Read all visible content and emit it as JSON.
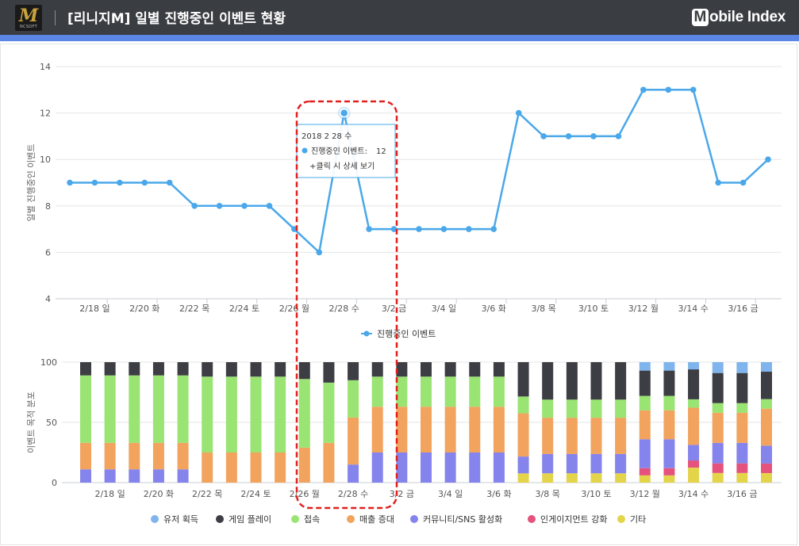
{
  "header": {
    "game_logo_glyph": "M",
    "game_logo_sub": "NCSOFT",
    "title": "[리니지M] 일별 진행중인 이벤트 현황",
    "brand_badge": "M",
    "brand_text": "obile Index"
  },
  "colors": {
    "header_bg": "#3a3d42",
    "accent_stripe": "#5b86e5",
    "line": "#4aa8ea",
    "highlight_box": "#e0201e"
  },
  "chart_data": [
    {
      "type": "line",
      "x": [
        "2018-02-17",
        "2018-02-18",
        "2018-02-19",
        "2018-02-20",
        "2018-02-21",
        "2018-02-22",
        "2018-02-23",
        "2018-02-24",
        "2018-02-25",
        "2018-02-26",
        "2018-02-27",
        "2018-02-28",
        "2018-03-01",
        "2018-03-02",
        "2018-03-03",
        "2018-03-04",
        "2018-03-05",
        "2018-03-06",
        "2018-03-07",
        "2018-03-08",
        "2018-03-09",
        "2018-03-10",
        "2018-03-11",
        "2018-03-12",
        "2018-03-13",
        "2018-03-14",
        "2018-03-15",
        "2018-03-16",
        "2018-03-17"
      ],
      "series": [
        {
          "name": "진행중인 이벤트",
          "values": [
            9,
            9,
            9,
            9,
            9,
            8,
            8,
            8,
            8,
            7,
            6,
            12,
            7,
            7,
            7,
            7,
            7,
            7,
            12,
            11,
            11,
            11,
            11,
            13,
            13,
            13,
            9,
            9,
            10
          ]
        }
      ],
      "tick_labels": [
        "2/18 일",
        "2/20 화",
        "2/22 목",
        "2/24 토",
        "2/26 월",
        "2/28 수",
        "3/2 금",
        "3/4 일",
        "3/6 화",
        "3/8 목",
        "3/10 토",
        "3/12 월",
        "3/14 수",
        "3/16 금"
      ],
      "ylabel": "일별 진행중인 이벤트",
      "ylim": [
        4,
        14
      ],
      "yticks": [
        4,
        6,
        8,
        10,
        12,
        14
      ],
      "grid": true,
      "legend": "bottom-center",
      "tooltip": {
        "index": 11,
        "date": "2018 2 28 수",
        "series_label": "진행중인 이벤트:",
        "value": "12",
        "hint": "+클릭 시 상세 보기"
      }
    },
    {
      "type": "bar",
      "stacked": true,
      "x": [
        "2018-02-17",
        "2018-02-18",
        "2018-02-19",
        "2018-02-20",
        "2018-02-21",
        "2018-02-22",
        "2018-02-23",
        "2018-02-24",
        "2018-02-25",
        "2018-02-26",
        "2018-02-27",
        "2018-02-28",
        "2018-03-01",
        "2018-03-02",
        "2018-03-03",
        "2018-03-04",
        "2018-03-05",
        "2018-03-06",
        "2018-03-07",
        "2018-03-08",
        "2018-03-09",
        "2018-03-10",
        "2018-03-11",
        "2018-03-12",
        "2018-03-13",
        "2018-03-14",
        "2018-03-15",
        "2018-03-16",
        "2018-03-17"
      ],
      "tick_labels": [
        "2/18 일",
        "2/20 화",
        "2/22 목",
        "2/24 토",
        "2/26 월",
        "2/28 수",
        "3/2 금",
        "3/4 일",
        "3/6 화",
        "3/8 목",
        "3/10 토",
        "3/12 월",
        "3/14 수",
        "3/16 금"
      ],
      "ylabel": "이벤트 목적 분포",
      "ylim": [
        0,
        100
      ],
      "yticks": [
        0,
        50,
        100
      ],
      "legend": "bottom-center",
      "series": [
        {
          "name": "기타",
          "color": "#e3d44a",
          "values": [
            0,
            0,
            0,
            0,
            0,
            0,
            0,
            0,
            0,
            0,
            0,
            0,
            0,
            0,
            0,
            0,
            0,
            0,
            7.7,
            7.7,
            7.7,
            7.7,
            7.7,
            6,
            6,
            12.5,
            8,
            8,
            8
          ]
        },
        {
          "name": "인게이지먼트 강화",
          "color": "#e5527d",
          "values": [
            0,
            0,
            0,
            0,
            0,
            0,
            0,
            0,
            0,
            0,
            0,
            0,
            0,
            0,
            0,
            0,
            0,
            0,
            0,
            0,
            0,
            0,
            0,
            6,
            6,
            6,
            8,
            8,
            8
          ]
        },
        {
          "name": "커뮤니티/SNS 활성화",
          "color": "#8584ec",
          "values": [
            11,
            11,
            11,
            11,
            11,
            0,
            0,
            0,
            0,
            0,
            0,
            15,
            25,
            25,
            25,
            25,
            25,
            25,
            14,
            16,
            16,
            16,
            16,
            24,
            24,
            13,
            17,
            17,
            15
          ]
        },
        {
          "name": "매출 증대",
          "color": "#f2a35e",
          "values": [
            22,
            22,
            22,
            22,
            22,
            25,
            25,
            25,
            25,
            29,
            33,
            39,
            38,
            38,
            38,
            38,
            38,
            38,
            36,
            30,
            30,
            30,
            30,
            24,
            24,
            31,
            25,
            25,
            31
          ]
        },
        {
          "name": "접속",
          "color": "#99e472",
          "values": [
            56,
            56,
            56,
            56,
            56,
            63,
            63,
            63,
            63,
            57,
            50,
            31,
            25,
            25,
            25,
            25,
            25,
            25,
            14,
            15,
            15,
            15,
            15,
            12,
            12,
            7,
            8,
            8,
            8
          ]
        },
        {
          "name": "게임 플레이",
          "color": "#3d3d44",
          "values": [
            11,
            11,
            11,
            11,
            11,
            12,
            12,
            12,
            12,
            14,
            17,
            15,
            12,
            12,
            12,
            12,
            12,
            12,
            28.6,
            31,
            31,
            31,
            31,
            21,
            21,
            25,
            25,
            25,
            23
          ]
        },
        {
          "name": "유저 획득",
          "color": "#7fb5ec",
          "values": [
            0,
            0,
            0,
            0,
            0,
            0,
            0,
            0,
            0,
            0,
            0,
            0,
            0,
            0,
            0,
            0,
            0,
            0,
            0,
            0,
            0,
            0,
            0,
            7,
            7,
            6,
            9,
            9,
            8
          ]
        }
      ],
      "legend_order": [
        "유저 획득",
        "게임 플레이",
        "접속",
        "매출 증대",
        "커뮤니티/SNS 활성화",
        "인게이지먼트 강화",
        "기타"
      ]
    }
  ]
}
